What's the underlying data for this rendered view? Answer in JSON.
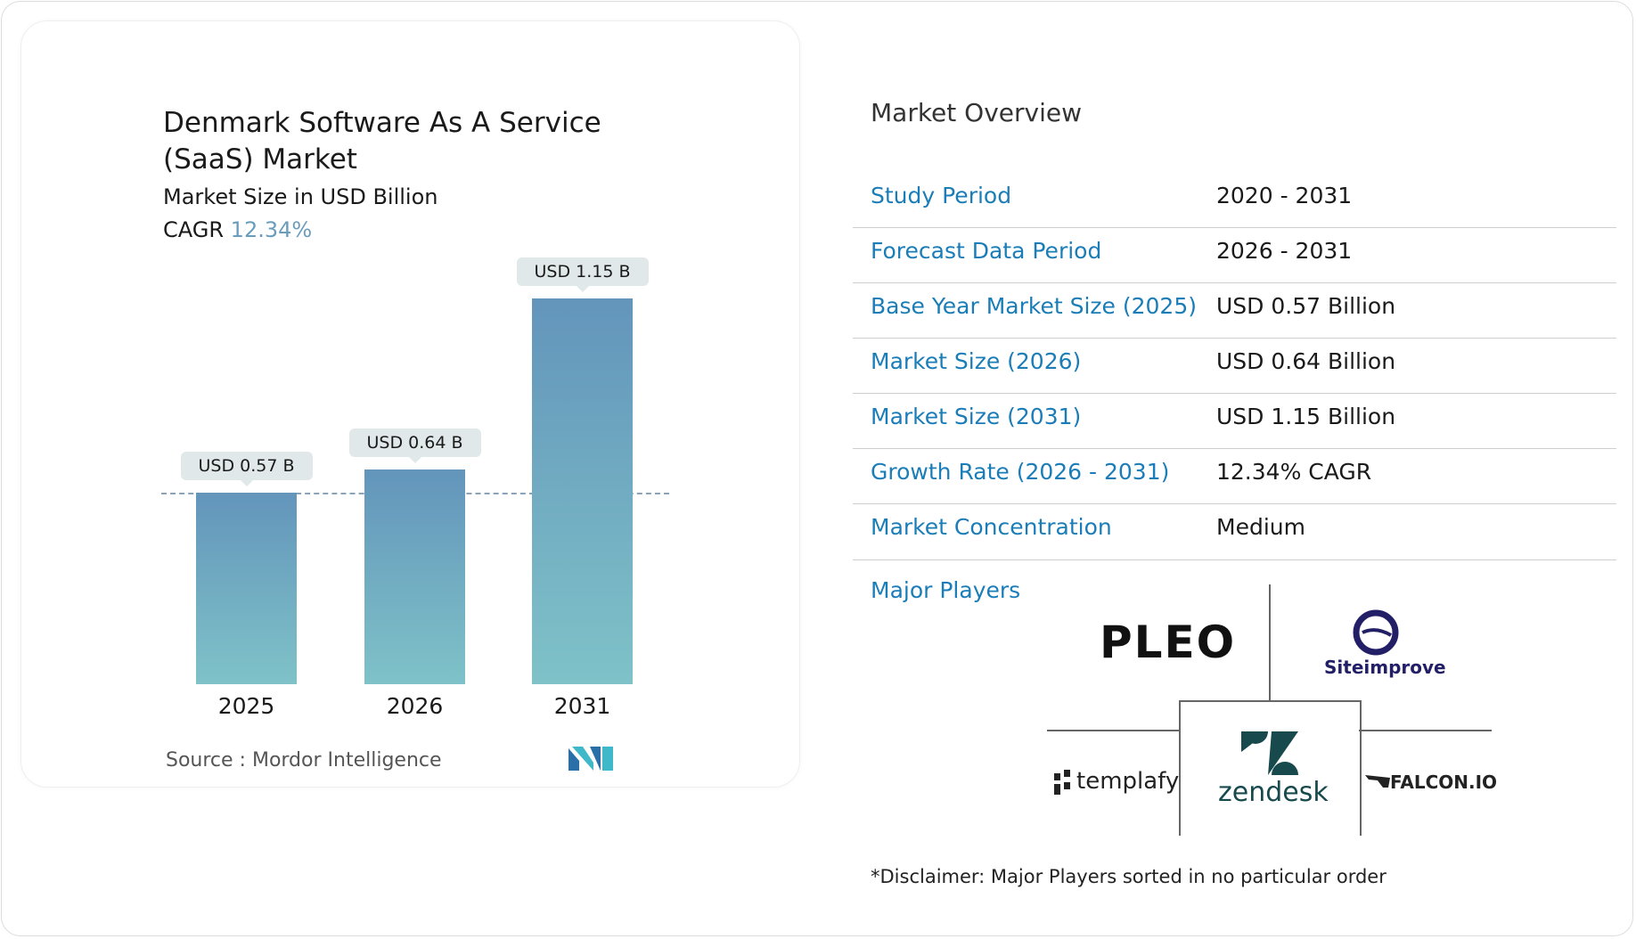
{
  "chart_data": {
    "type": "bar",
    "title": "Denmark Software As A Service (SaaS) Market",
    "subtitle": "Market Size in USD Billion",
    "cagr_label": "CAGR",
    "cagr_value": "12.34%",
    "categories": [
      "2025",
      "2026",
      "2031"
    ],
    "values": [
      0.57,
      0.64,
      1.15
    ],
    "data_labels": [
      "USD 0.57 B",
      "USD 0.64 B",
      "USD 1.15 B"
    ],
    "reference_line": 0.57,
    "bar_color_top": "#6395bb",
    "bar_color_bottom": "#7fc2c8",
    "source": "Source :  Mordor Intelligence"
  },
  "overview": {
    "title": "Market Overview",
    "rows": [
      {
        "key": "Study Period",
        "value": "2020 - 2031"
      },
      {
        "key": "Forecast Data Period",
        "value": "2026 - 2031"
      },
      {
        "key": "Base Year Market Size (2025)",
        "value": "USD 0.57 Billion"
      },
      {
        "key": "Market Size (2026)",
        "value": "USD 0.64 Billion"
      },
      {
        "key": "Market Size (2031)",
        "value": "USD 1.15 Billion"
      },
      {
        "key": "Growth Rate (2026 - 2031)",
        "value": "12.34% CAGR"
      },
      {
        "key": "Market Concentration",
        "value": "Medium"
      }
    ],
    "accent_color": "#1b7db8"
  },
  "players": {
    "title": "Major Players",
    "logos": [
      "PLEO",
      "Siteimprove",
      "templafy",
      "zendesk",
      "FALCON.IO"
    ],
    "disclaimer": "*Disclaimer: Major Players sorted in no particular order"
  },
  "brand_logo": "MI"
}
